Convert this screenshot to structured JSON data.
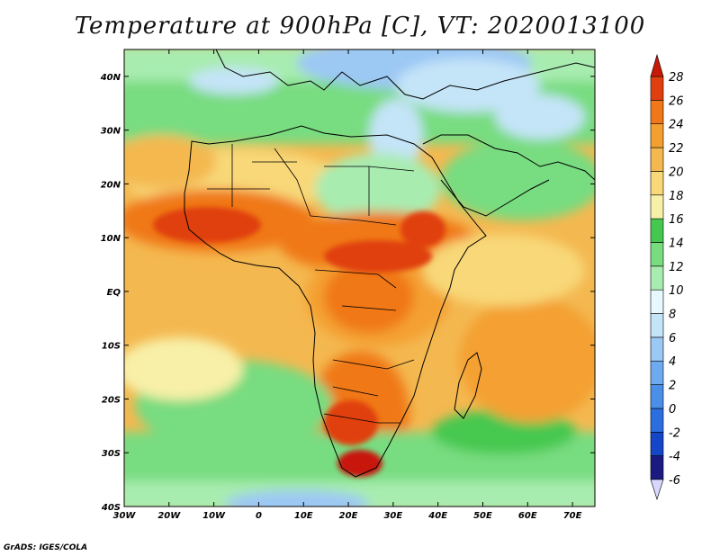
{
  "title": "Temperature at 900hPa [C], VT: 2020013100",
  "credit": "GrADS: IGES/COLA",
  "map": {
    "lon_labels": [
      "30W",
      "20W",
      "10W",
      "0",
      "10E",
      "20E",
      "30E",
      "40E",
      "50E",
      "60E",
      "70E"
    ],
    "lat_labels": [
      "40N",
      "30N",
      "20N",
      "10N",
      "EQ",
      "10S",
      "20S",
      "30S",
      "40S"
    ],
    "lon_range": [
      -30,
      75
    ],
    "lat_range": [
      -40,
      45
    ]
  },
  "colorbar": {
    "levels": [
      "28",
      "26",
      "24",
      "22",
      "20",
      "18",
      "16",
      "14",
      "12",
      "10",
      "8",
      "6",
      "4",
      "2",
      "0",
      "-2",
      "-4",
      "-6"
    ],
    "colors": [
      "#d8d8ff",
      "#1a1a80",
      "#1646c8",
      "#2a6ee0",
      "#4a90e8",
      "#6eaaf0",
      "#9cc8f4",
      "#c4e4f8",
      "#e8f8ff",
      "#a8ecb0",
      "#78dc80",
      "#46c850",
      "#f8f0a8",
      "#f8d878",
      "#f4b850",
      "#f4a030",
      "#f07818",
      "#e04010",
      "#c81808"
    ]
  },
  "colors": {
    "ocean_tropical": "#f4b850",
    "ocean_mid": "#f8d878",
    "ocean_cool": "#78dc80",
    "land_hot": "#e04010",
    "border": "#000000"
  }
}
